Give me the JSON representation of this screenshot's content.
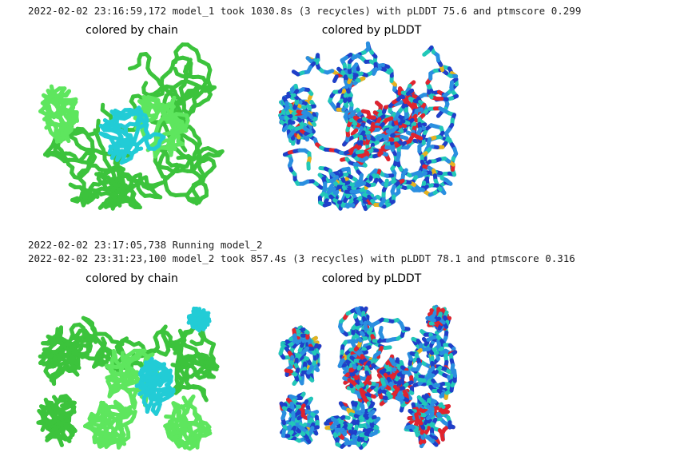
{
  "log": {
    "model_1_result": "2022-02-02 23:16:59,172 model_1 took 1030.8s (3 recycles) with pLDDT 75.6 and ptmscore 0.299",
    "model_2_running": "2022-02-02 23:17:05,738 Running model_2",
    "model_2_result": "2022-02-02 23:31:23,100 model_2 took 857.4s (3 recycles) with pLDDT 78.1 and ptmscore 0.316"
  },
  "models": [
    {
      "chain_title": "colored by chain",
      "plddt_title": "colored by pLDDT"
    },
    {
      "chain_title": "colored by chain",
      "plddt_title": "colored by pLDDT"
    }
  ],
  "colors": {
    "chain_a": "#3cc33c",
    "chain_b": "#5ee65e",
    "chain_c": "#22ccd6",
    "plddt_very_high": "#1f3fc9",
    "plddt_high": "#2a8fe0",
    "plddt_mid": "#22c8b8",
    "plddt_low": "#e6b21f",
    "plddt_very_low": "#e0242e"
  }
}
